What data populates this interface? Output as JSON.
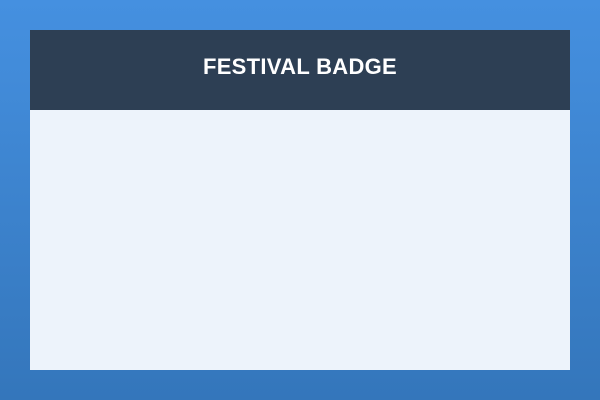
{
  "badge": {
    "title": "FESTIVAL BADGE"
  },
  "colors": {
    "background_top": "#4590e0",
    "background_bottom": "#3476bb",
    "header": "#2d3f54",
    "card_body": "#edf3fb",
    "title_text": "#ffffff"
  }
}
